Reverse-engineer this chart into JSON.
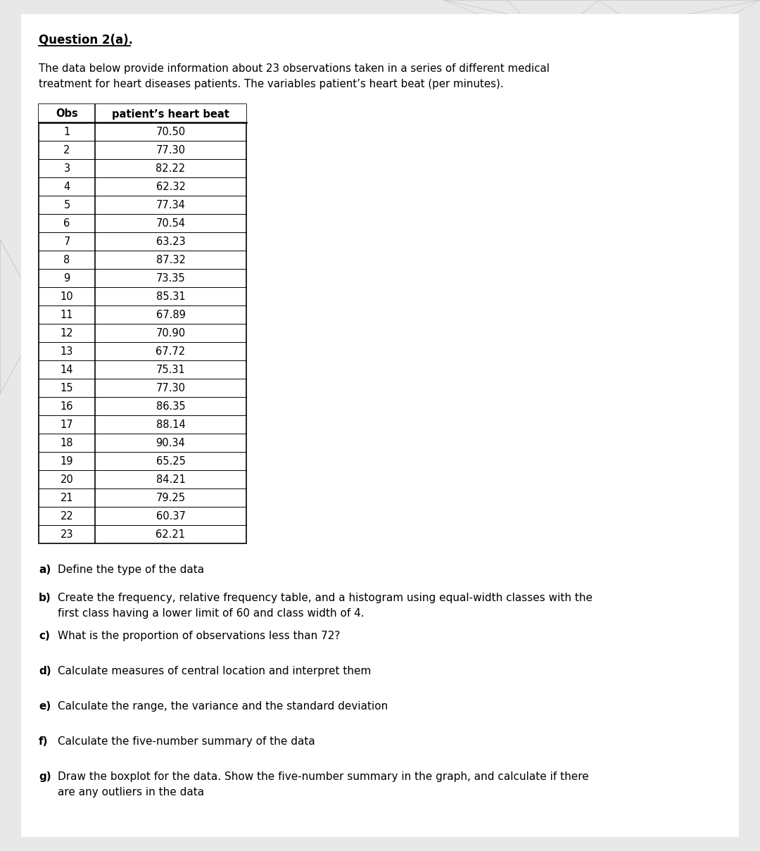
{
  "title": "Question 2(a).",
  "intro_line1": "The data below provide information about 23 observations taken in a series of different medical",
  "intro_line2": "treatment for heart diseases patients. The variables patient’s heart beat (per minutes).",
  "col_header1": "Obs",
  "col_header2": "patient’s heart beat",
  "observations": [
    1,
    2,
    3,
    4,
    5,
    6,
    7,
    8,
    9,
    10,
    11,
    12,
    13,
    14,
    15,
    16,
    17,
    18,
    19,
    20,
    21,
    22,
    23
  ],
  "heartbeats": [
    "70.50",
    "77.30",
    "82.22",
    "62.32",
    "77.34",
    "70.54",
    "63.23",
    "87.32",
    "73.35",
    "85.31",
    "67.89",
    "70.90",
    "67.72",
    "75.31",
    "77.30",
    "86.35",
    "88.14",
    "90.34",
    "65.25",
    "84.21",
    "79.25",
    "60.37",
    "62.21"
  ],
  "q_a_label": "a)",
  "q_a_text": "Define the type of the data",
  "q_b_label": "b)",
  "q_b_text1": "Create the frequency, relative frequency table, and a histogram using equal-width classes with the",
  "q_b_text2": "first class having a lower limit of 60 and class width of 4.",
  "q_c_label": "c)",
  "q_c_text": "What is the proportion of observations less than 72?",
  "q_d_label": "d)",
  "q_d_text": "Calculate measures of central location and interpret them",
  "q_e_label": "e)",
  "q_e_text": "Calculate the range, the variance and the standard deviation",
  "q_f_label": "f)",
  "q_f_text": "Calculate the five-number summary of the data",
  "q_g_label": "g)",
  "q_g_text1": "Draw the boxplot for the data. Show the five-number summary in the graph, and calculate if there",
  "q_g_text2": "are any outliers in the data",
  "bg_color": "#e8e8e8",
  "page_bg": "#ffffff",
  "font_size": 11,
  "title_font_size": 12
}
